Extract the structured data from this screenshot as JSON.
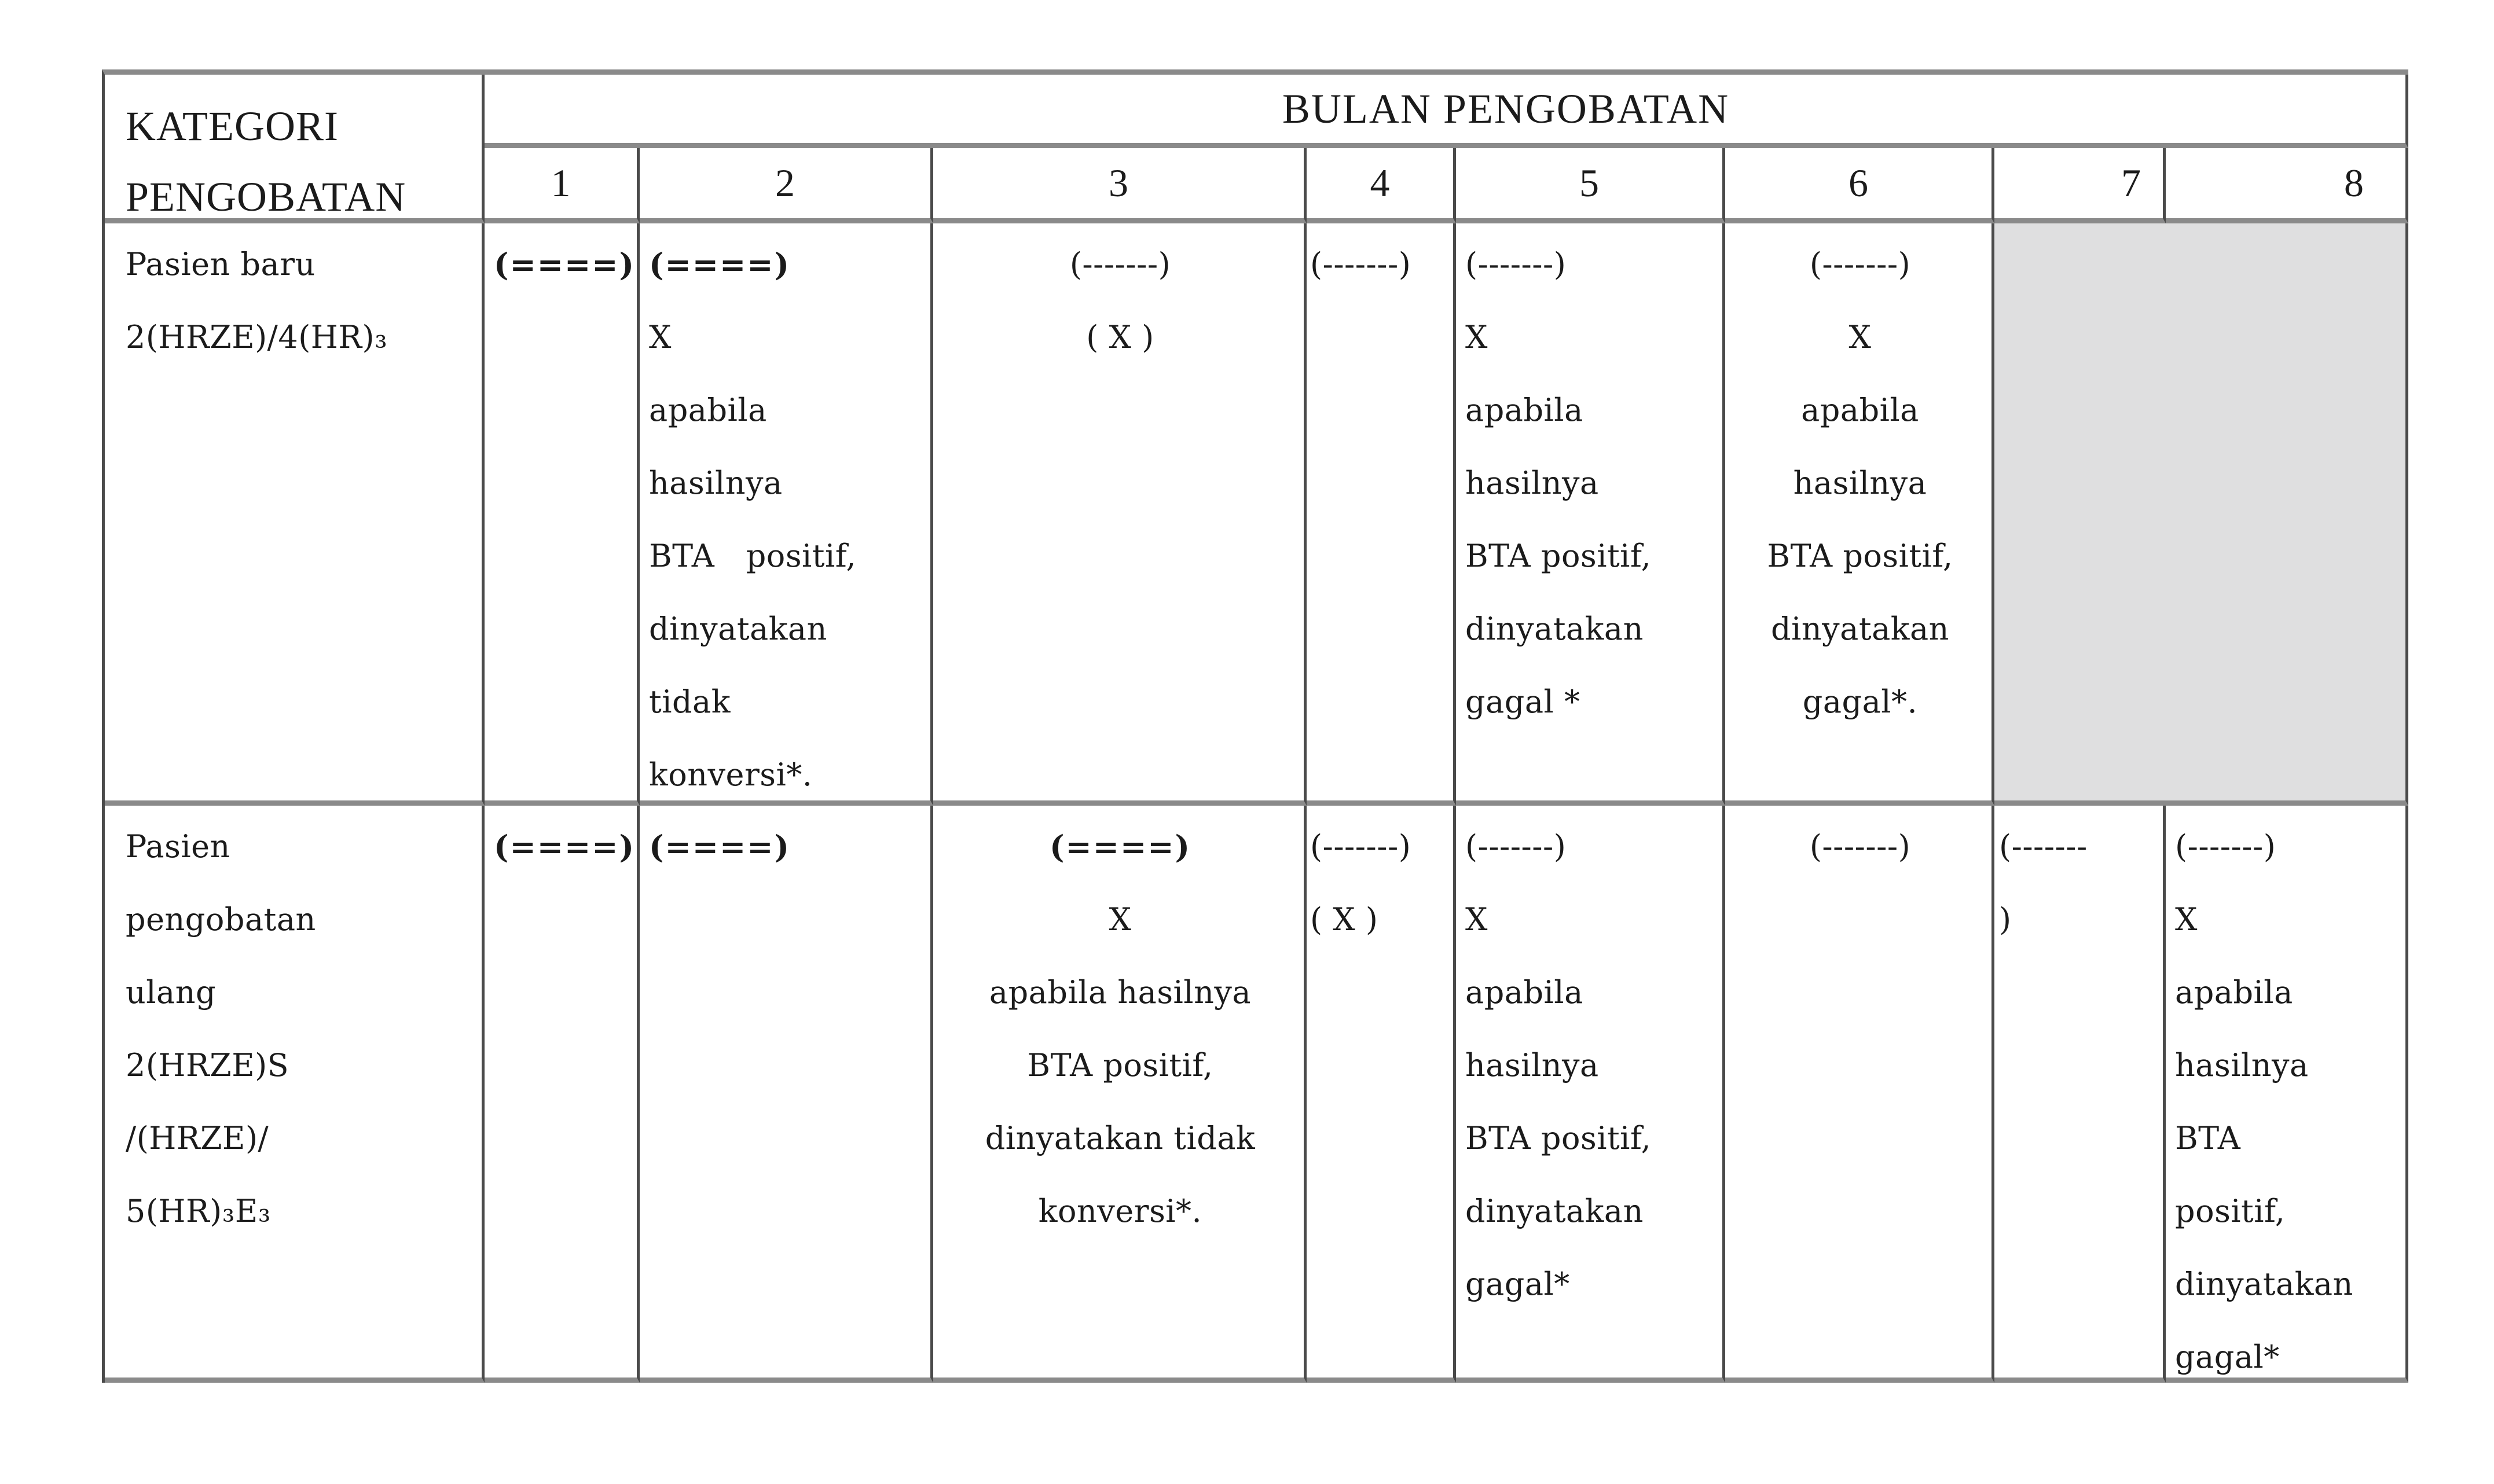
{
  "colors": {
    "page_bg": "#ffffff",
    "shaded_cell_bg": "#dfdfe0",
    "grid_line_dark": "#4a4a4a",
    "grid_line_gray": "#8a8a8a",
    "text": "#1b1b1b"
  },
  "header": {
    "category_label_lines": [
      "KATEGORI",
      "PENGOBATAN"
    ],
    "months_title": "BULAN PENGOBATAN",
    "month_numbers": [
      "1",
      "2",
      "3",
      "4",
      "5",
      "6",
      "7",
      "8"
    ]
  },
  "rows": [
    {
      "category_lines": [
        "Pasien baru",
        "2(HRZE)/4(HR)₃"
      ],
      "m1": [
        "(====)"
      ],
      "m2": [
        "(====)",
        "X",
        "apabila",
        "hasilnya",
        "BTA positif,",
        "dinyatakan",
        "tidak",
        "konversi*."
      ],
      "m3": [
        "(-------)",
        "( X )"
      ],
      "m4": [
        "(-------)"
      ],
      "m5": [
        "(-------)",
        "X",
        "apabila",
        "hasilnya",
        "BTA positif,",
        "dinyatakan",
        "gagal *"
      ],
      "m6": [
        "(-------)",
        "X",
        "apabila",
        "hasilnya",
        "BTA positif,",
        "dinyatakan",
        "gagal*."
      ],
      "m7_8_shaded": []
    },
    {
      "category_lines": [
        "Pasien",
        "pengobatan",
        "ulang",
        "2(HRZE)S",
        "/(HRZE)/",
        "5(HR)₃E₃"
      ],
      "m1": [
        "(====)"
      ],
      "m2": [
        "(====)"
      ],
      "m3": [
        "(====)",
        "X",
        "apabila hasilnya",
        "BTA positif,",
        "dinyatakan tidak",
        "konversi*."
      ],
      "m4": [
        "(-------)",
        "( X )"
      ],
      "m5": [
        "(-------)",
        "X",
        "apabila",
        "hasilnya",
        "BTA positif,",
        "dinyatakan",
        "gagal*"
      ],
      "m6": [
        "(-------)"
      ],
      "m7": [
        "(-------",
        ")"
      ],
      "m8": [
        "(-------)",
        "X",
        "apabila",
        "hasilnya",
        "BTA",
        "positif,",
        "dinyatakan",
        "gagal*"
      ]
    }
  ]
}
